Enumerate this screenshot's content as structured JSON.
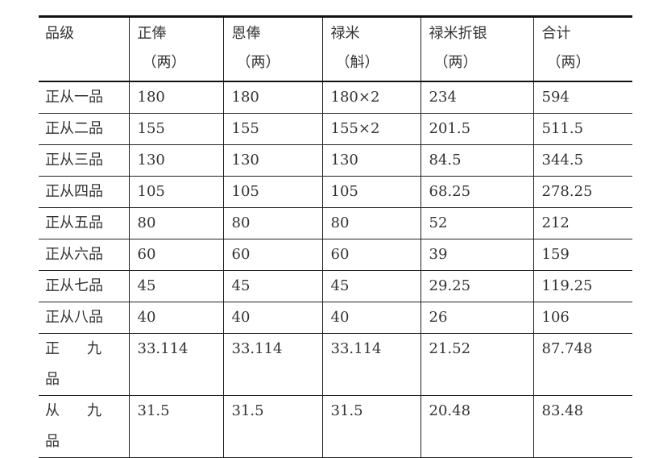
{
  "headers": [
    {
      "label": "品级",
      "unit": ""
    },
    {
      "label": "正俸",
      "unit": "（两）"
    },
    {
      "label": "恩俸",
      "unit": "（两）"
    },
    {
      "label": "禄米",
      "unit": "（斛）"
    },
    {
      "label": "禄米折银",
      "unit": "（两）"
    },
    {
      "label": "合计",
      "unit": "（两）"
    }
  ],
  "rows": [
    [
      "正从一品",
      "180",
      "180",
      "180×2",
      "234",
      "594"
    ],
    [
      "正从二品",
      "155",
      "155",
      "155×2",
      "201.5",
      "511.5"
    ],
    [
      "正从三品",
      "130",
      "130",
      "130",
      "84.5",
      "344.5"
    ],
    [
      "正从四品",
      "105",
      "105",
      "105",
      "68.25",
      "278.25"
    ],
    [
      "正从五品",
      "80",
      "80",
      "80",
      "52",
      "212"
    ],
    [
      "正从六品",
      "60",
      "60",
      "60",
      "39",
      "159"
    ],
    [
      "正从七品",
      "45",
      "45",
      "45",
      "29.25",
      "119.25"
    ],
    [
      "正从八品",
      "40",
      "40",
      "40",
      "26",
      "106"
    ]
  ],
  "tall_rows": [
    {
      "rank": [
        "正",
        "九",
        "品"
      ],
      "values": [
        "33.114",
        "33.114",
        "33.114",
        "21.52",
        "87.748"
      ]
    },
    {
      "rank": [
        "从",
        "九",
        "品"
      ],
      "values": [
        "31.5",
        "31.5",
        "31.5",
        "20.48",
        "83.48"
      ]
    }
  ]
}
